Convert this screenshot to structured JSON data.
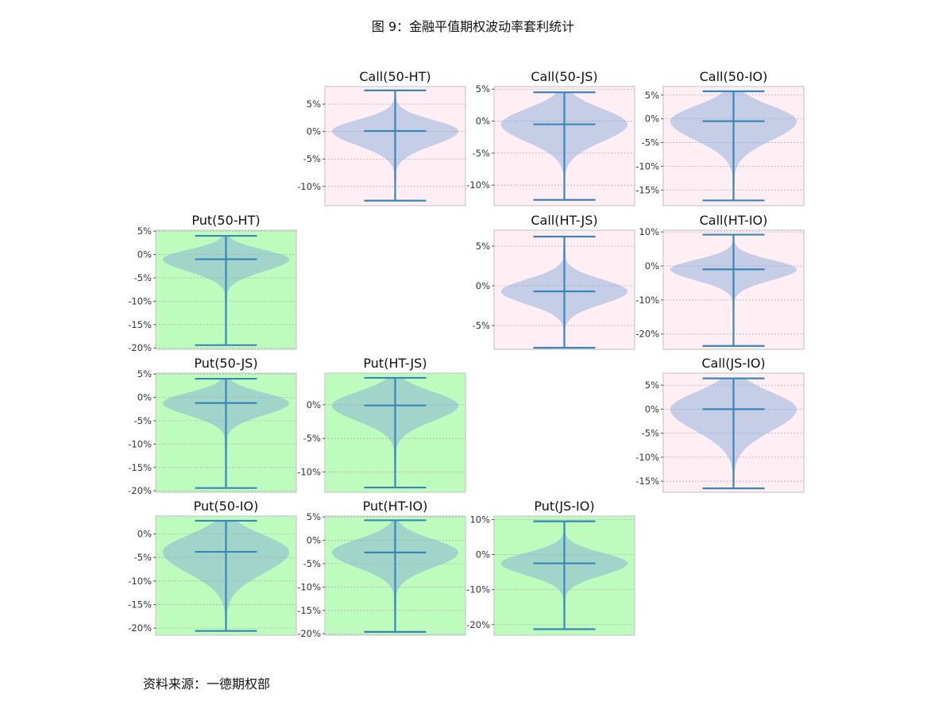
{
  "title": "图 9：金融平值期权波动率套利统计",
  "source": "资料来源：一德期权部",
  "colors": {
    "call_bg": "#ffeef3",
    "put_bg": "#bdfcbd",
    "violin_fill": "#7fa6d6",
    "line": "#3a86b9",
    "grid": "#b0b0b0",
    "frame": "#c9c9c9"
  },
  "chart_data": [
    {
      "type": "violin",
      "title": "Call(50-HT)",
      "grid_row": 0,
      "grid_col": 1,
      "bg": "call",
      "ylim": [
        -13.5,
        8.2
      ],
      "yticks": [
        5,
        0,
        -5,
        -10
      ],
      "ytick_labels": [
        "5%",
        "0%",
        "-5%",
        "-10%"
      ],
      "max": 7.5,
      "min": -12.6,
      "mean": 0.1,
      "spread_up": 2.0,
      "spread_down": 2.6,
      "tail_down": 6,
      "tail_up": 4
    },
    {
      "type": "violin",
      "title": "Call(50-JS)",
      "grid_row": 0,
      "grid_col": 2,
      "bg": "call",
      "ylim": [
        -13.2,
        5.4
      ],
      "yticks": [
        5,
        0,
        -5,
        -10
      ],
      "ytick_labels": [
        "5%",
        "0%",
        "-5%",
        "-10%"
      ],
      "max": 4.5,
      "min": -12.3,
      "mean": -0.5,
      "spread_up": 2.4,
      "spread_down": 2.7,
      "tail_down": 5,
      "tail_up": 4
    },
    {
      "type": "violin",
      "title": "Call(50-IO)",
      "grid_row": 0,
      "grid_col": 3,
      "bg": "call",
      "ylim": [
        -18.3,
        6.8
      ],
      "yticks": [
        5,
        0,
        -5,
        -10,
        -15
      ],
      "ytick_labels": [
        "5%",
        "0%",
        "-5%",
        "-10%",
        "-15%"
      ],
      "max": 5.8,
      "min": -17.2,
      "mean": -0.5,
      "spread_up": 3.2,
      "spread_down": 4.0,
      "tail_down": 9,
      "tail_up": 4
    },
    {
      "type": "violin",
      "title": "Put(50-HT)",
      "grid_row": 1,
      "grid_col": 0,
      "bg": "put",
      "ylim": [
        -20.3,
        5.2
      ],
      "yticks": [
        5,
        0,
        -5,
        -10,
        -15,
        -20
      ],
      "ytick_labels": [
        "5%",
        "0%",
        "-5%",
        "-10%",
        "-15%",
        "-20%"
      ],
      "max": 4.0,
      "min": -19.4,
      "mean": -1.0,
      "spread_up": 2.0,
      "spread_down": 2.6,
      "tail_down": 6,
      "tail_up": 4
    },
    {
      "type": "violin",
      "title": "Call(HT-JS)",
      "grid_row": 1,
      "grid_col": 2,
      "bg": "call",
      "ylim": [
        -8.0,
        7.0
      ],
      "yticks": [
        5,
        0,
        -5
      ],
      "ytick_labels": [
        "5%",
        "0%",
        "-5%"
      ],
      "max": 6.2,
      "min": -7.8,
      "mean": -0.7,
      "spread_up": 1.5,
      "spread_down": 1.6,
      "tail_down": 3,
      "tail_up": 4
    },
    {
      "type": "violin",
      "title": "Call(HT-IO)",
      "grid_row": 1,
      "grid_col": 3,
      "bg": "call",
      "ylim": [
        -24.5,
        10.5
      ],
      "yticks": [
        10,
        0,
        -10,
        -20
      ],
      "ytick_labels": [
        "10%",
        "0%",
        "-10%",
        "-20%"
      ],
      "max": 9.2,
      "min": -23.5,
      "mean": -1.0,
      "spread_up": 2.8,
      "spread_down": 3.2,
      "tail_down": 7,
      "tail_up": 4
    },
    {
      "type": "violin",
      "title": "Put(50-JS)",
      "grid_row": 2,
      "grid_col": 0,
      "bg": "put",
      "ylim": [
        -20.3,
        5.2
      ],
      "yticks": [
        5,
        0,
        -5,
        -10,
        -15,
        -20
      ],
      "ytick_labels": [
        "5%",
        "0%",
        "-5%",
        "-10%",
        "-15%",
        "-20%"
      ],
      "max": 4.0,
      "min": -19.4,
      "mean": -1.2,
      "spread_up": 2.2,
      "spread_down": 2.6,
      "tail_down": 7,
      "tail_up": 4
    },
    {
      "type": "violin",
      "title": "Put(HT-JS)",
      "grid_row": 2,
      "grid_col": 1,
      "bg": "put",
      "ylim": [
        -13.0,
        4.7
      ],
      "yticks": [
        0,
        -5,
        -10
      ],
      "ytick_labels": [
        "0%",
        "-5%",
        "-10%"
      ],
      "max": 4.0,
      "min": -12.3,
      "mean": -0.1,
      "spread_up": 2.0,
      "spread_down": 2.3,
      "tail_down": 5,
      "tail_up": 4
    },
    {
      "type": "violin",
      "title": "Call(JS-IO)",
      "grid_row": 2,
      "grid_col": 3,
      "bg": "call",
      "ylim": [
        -17.3,
        7.5
      ],
      "yticks": [
        5,
        0,
        -5,
        -10,
        -15
      ],
      "ytick_labels": [
        "5%",
        "0%",
        "-5%",
        "-10%",
        "-15%"
      ],
      "max": 6.4,
      "min": -16.5,
      "mean": 0.0,
      "spread_up": 3.5,
      "spread_down": 4.5,
      "tail_down": 9,
      "tail_up": 4
    },
    {
      "type": "violin",
      "title": "Put(50-IO)",
      "grid_row": 3,
      "grid_col": 0,
      "bg": "put",
      "ylim": [
        -21.5,
        3.8
      ],
      "yticks": [
        0,
        -5,
        -10,
        -15,
        -20
      ],
      "ytick_labels": [
        "0%",
        "-5%",
        "-10%",
        "-15%",
        "-20%"
      ],
      "max": 2.8,
      "min": -20.6,
      "mean": -3.8,
      "spread_up": 3.5,
      "spread_down": 4.5,
      "tail_down": 9,
      "tail_up": 4
    },
    {
      "type": "violin",
      "title": "Put(HT-IO)",
      "grid_row": 3,
      "grid_col": 1,
      "bg": "put",
      "ylim": [
        -20.3,
        5.2
      ],
      "yticks": [
        5,
        0,
        -5,
        -10,
        -15,
        -20
      ],
      "ytick_labels": [
        "5%",
        "0%",
        "-5%",
        "-10%",
        "-15%",
        "-20%"
      ],
      "max": 4.3,
      "min": -19.6,
      "mean": -2.6,
      "spread_up": 2.8,
      "spread_down": 3.2,
      "tail_down": 8,
      "tail_up": 4
    },
    {
      "type": "violin",
      "title": "Put(JS-IO)",
      "grid_row": 3,
      "grid_col": 2,
      "bg": "put",
      "ylim": [
        -23.0,
        11.0
      ],
      "yticks": [
        10,
        0,
        -10,
        -20
      ],
      "ytick_labels": [
        "10%",
        "0%",
        "-10%",
        "-20%"
      ],
      "max": 9.5,
      "min": -21.3,
      "mean": -2.5,
      "spread_up": 3.0,
      "spread_down": 3.4,
      "tail_down": 8,
      "tail_up": 5
    }
  ]
}
